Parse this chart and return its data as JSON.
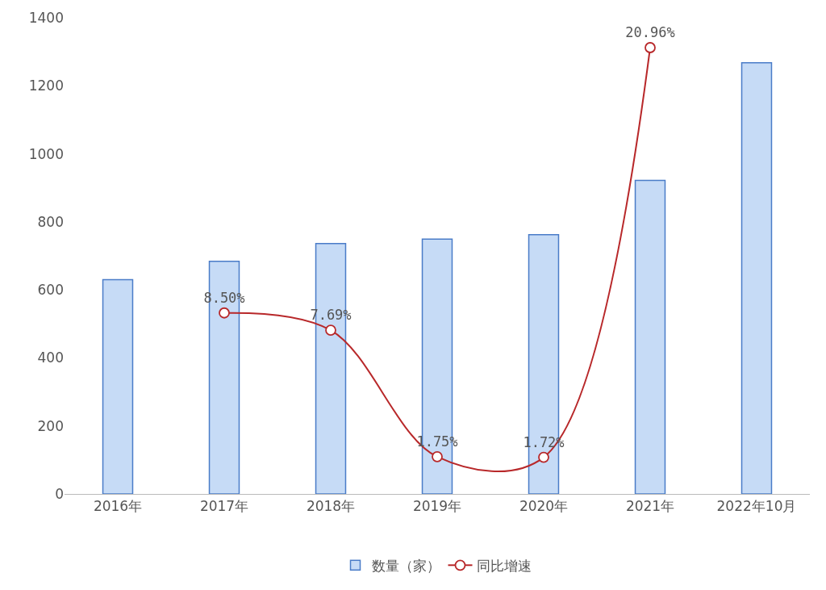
{
  "chart_data": {
    "type": "bar",
    "categories": [
      "2016年",
      "2017年",
      "2018年",
      "2019年",
      "2020年",
      "2021年",
      "2022年10月"
    ],
    "series": [
      {
        "name": "数量（家）",
        "color": "#c6dbf6",
        "values": [
          630,
          684,
          736,
          749,
          762,
          922,
          1268
        ]
      },
      {
        "name": "同比增速",
        "type": "line",
        "axis": "y2",
        "color": "#b8282a",
        "marker": "circle",
        "values": [
          null,
          8.5,
          7.69,
          1.75,
          1.72,
          20.96,
          null
        ],
        "value_labels": [
          null,
          "8.50%",
          "7.69%",
          "1.75%",
          "1.72%",
          "20.96%",
          null
        ]
      }
    ],
    "ylim": [
      0,
      1400
    ],
    "yticks": [
      0,
      200,
      400,
      600,
      800,
      1000,
      1200,
      1400
    ],
    "grid": false,
    "legend": "bottom"
  }
}
